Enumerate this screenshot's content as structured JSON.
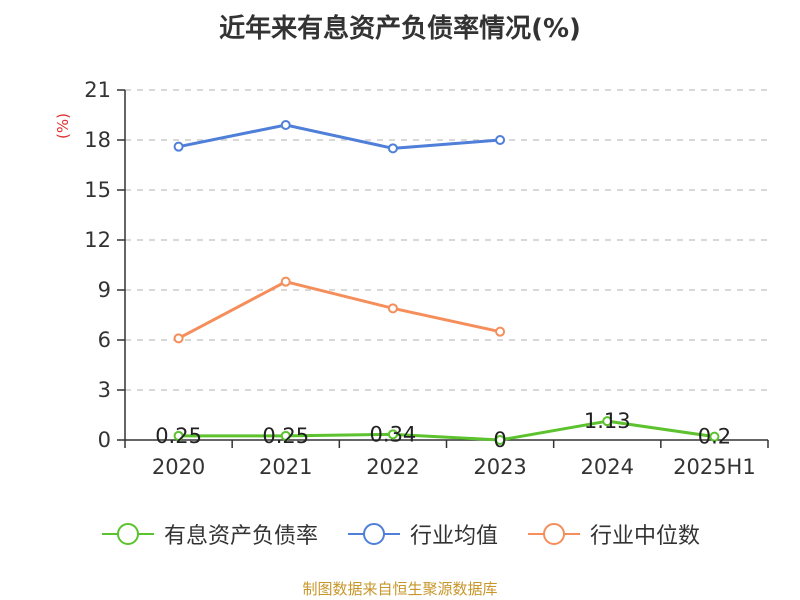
{
  "chart_data": {
    "type": "line",
    "title": "近年来有息资产负债率情况(%)",
    "ylabel": "(%)",
    "xlabel": "",
    "ylim": [
      0,
      21
    ],
    "yticks": [
      0,
      3,
      6,
      9,
      12,
      15,
      18,
      21
    ],
    "categories": [
      "2020",
      "2021",
      "2022",
      "2023",
      "2024",
      "2025H1"
    ],
    "grid": true,
    "legend_position": "bottom",
    "series": [
      {
        "name": "有息资产负债率",
        "color": "#5cc22d",
        "values": [
          0.25,
          0.25,
          0.34,
          0,
          1.13,
          0.2
        ],
        "labels": [
          "0.25",
          "0.25",
          "0.34",
          "0",
          "1.13",
          "0.2"
        ]
      },
      {
        "name": "行业均值",
        "color": "#4f7fd8",
        "values": [
          17.6,
          18.9,
          17.5,
          18.0,
          null,
          null
        ]
      },
      {
        "name": "行业中位数",
        "color": "#f58e5a",
        "values": [
          6.1,
          9.5,
          7.9,
          6.5,
          null,
          null
        ]
      }
    ]
  },
  "source_text": "制图数据来自恒生聚源数据库",
  "colors": {
    "axis_label_red": "#e03030",
    "source": "#c8962a"
  }
}
